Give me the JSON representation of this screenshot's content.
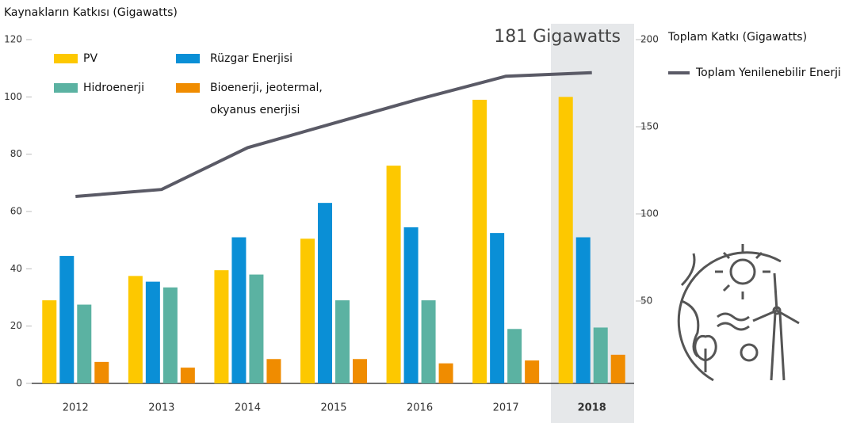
{
  "chart_data": {
    "type": "bar",
    "title": "Kaynakların Katkısı (Gigawatts)",
    "y2_title": "Toplam Katkı (Gigawatts)",
    "annotation": "181 Gigawatts",
    "categories": [
      "2012",
      "2013",
      "2014",
      "2015",
      "2016",
      "2017",
      "2018"
    ],
    "series": [
      {
        "name": "PV",
        "color": "#fdc800",
        "values": [
          29,
          37.5,
          39.5,
          50.5,
          76,
          99,
          100
        ]
      },
      {
        "name": "Rüzgar Enerjisi",
        "color": "#0a8fd6",
        "values": [
          44.5,
          35.5,
          51,
          63,
          54.5,
          52.5,
          51
        ]
      },
      {
        "name": "Hidroenerji",
        "color": "#5bb2a2",
        "values": [
          27.5,
          33.5,
          38,
          29,
          29,
          19,
          19.5
        ]
      },
      {
        "name": "Bioenerji, jeotermal, okyanus enerjisi",
        "color": "#f08c00",
        "values": [
          7.5,
          5.5,
          8.5,
          8.5,
          7,
          8,
          10
        ]
      },
      {
        "name": "Toplam Yenilenebilir Enerji",
        "color": "#5a5a66",
        "type": "line",
        "axis": "y2",
        "values": [
          110,
          114,
          138,
          152,
          166,
          179,
          181
        ]
      }
    ],
    "ylim": [
      0,
      120
    ],
    "yticks": [
      0,
      20,
      40,
      60,
      80,
      100,
      120
    ],
    "y2lim": [
      0,
      200
    ],
    "y2ticks": [
      50,
      100,
      150,
      200
    ],
    "grid": false
  }
}
